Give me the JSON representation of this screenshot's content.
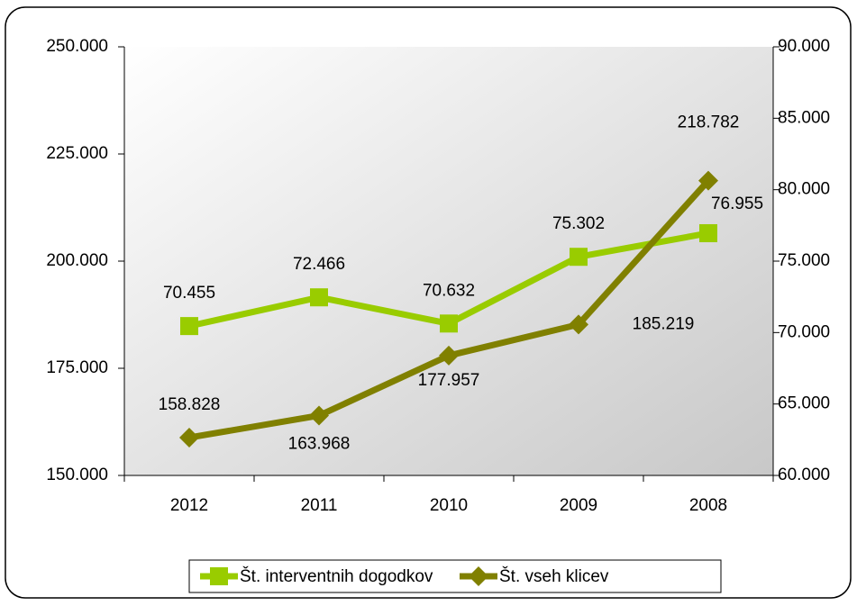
{
  "chart_data": {
    "type": "line",
    "categories": [
      "2012",
      "2011",
      "2010",
      "2009",
      "2008"
    ],
    "series": [
      {
        "name": "Št. interventnih dogodkov",
        "color": "#99cc00",
        "axis": "y2",
        "marker": "square",
        "values": [
          70455,
          72466,
          70632,
          75302,
          76955
        ],
        "value_labels": [
          "70.455",
          "72.466",
          "70.632",
          "75.302",
          "76.955"
        ]
      },
      {
        "name": "Št. vseh klicev",
        "color": "#808000",
        "axis": "y",
        "marker": "diamond",
        "values": [
          158828,
          163968,
          177957,
          185219,
          218782
        ],
        "value_labels": [
          "158.828",
          "163.968",
          "177.957",
          "185.219",
          "218.782"
        ]
      }
    ],
    "ylim": [
      150000,
      250000
    ],
    "yticks": [
      {
        "value": 150000,
        "label": "150.000"
      },
      {
        "value": 175000,
        "label": "175.000"
      },
      {
        "value": 200000,
        "label": "200.000"
      },
      {
        "value": 225000,
        "label": "225.000"
      },
      {
        "value": 250000,
        "label": "250.000"
      }
    ],
    "y2lim": [
      60000,
      90000
    ],
    "y2ticks": [
      {
        "value": 60000,
        "label": "60.000"
      },
      {
        "value": 65000,
        "label": "65.000"
      },
      {
        "value": 70000,
        "label": "70.000"
      },
      {
        "value": 75000,
        "label": "75.000"
      },
      {
        "value": 80000,
        "label": "80.000"
      },
      {
        "value": 85000,
        "label": "85.000"
      },
      {
        "value": 90000,
        "label": "90.000"
      }
    ],
    "legend": "bottom"
  }
}
